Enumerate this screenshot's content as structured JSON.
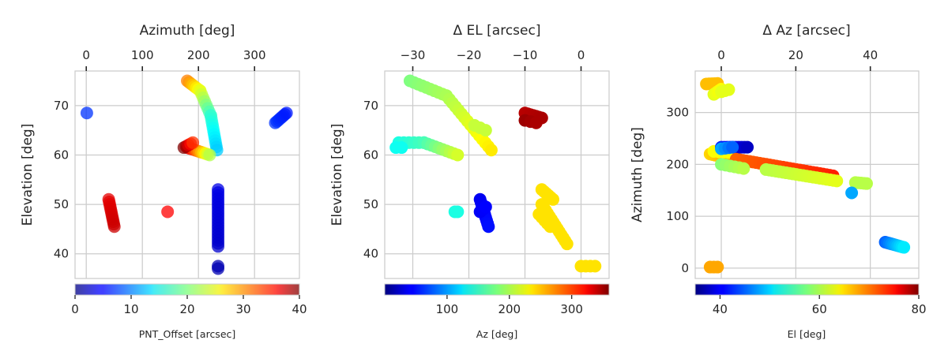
{
  "chart_data": [
    {
      "type": "scatter",
      "xlabel_top": "Azimuth [deg]",
      "ylabel": "Elevation [deg]",
      "xlim": [
        -20,
        380
      ],
      "ylim": [
        35,
        77
      ],
      "xticks": [
        0,
        100,
        200,
        300
      ],
      "yticks": [
        40,
        50,
        60,
        70
      ],
      "grid": true,
      "colorbar": {
        "label": "PNT_Offset [arcsec]",
        "range": [
          0,
          40
        ],
        "ticks": [
          0,
          10,
          20,
          30,
          40
        ],
        "colormap": "jet",
        "alpha": 0.75
      },
      "segments": [
        {
          "from": [
            180,
            75
          ],
          "to": [
            203,
            73
          ],
          "c_from": 30,
          "c_to": 24,
          "n": 8
        },
        {
          "from": [
            203,
            73
          ],
          "to": [
            222,
            68
          ],
          "c_from": 24,
          "c_to": 17,
          "n": 8
        },
        {
          "from": [
            222,
            68
          ],
          "to": [
            233,
            61
          ],
          "c_from": 17,
          "c_to": 13,
          "n": 12
        },
        {
          "from": [
            180,
            61.5
          ],
          "to": [
            220,
            60
          ],
          "c_from": 37,
          "c_to": 22,
          "n": 12
        },
        {
          "from": [
            174,
            61.5
          ],
          "to": [
            190,
            62.5
          ],
          "c_from": 40,
          "c_to": 33,
          "n": 5
        },
        {
          "from": [
            1,
            68.5
          ],
          "to": [
            2,
            68.5
          ],
          "c_from": 7,
          "c_to": 7,
          "n": 1
        },
        {
          "from": [
            337,
            66.5
          ],
          "to": [
            357,
            68.5
          ],
          "c_from": 7,
          "c_to": 6,
          "n": 8
        },
        {
          "from": [
            40,
            51
          ],
          "to": [
            50,
            45.5
          ],
          "c_from": 36,
          "c_to": 37,
          "n": 12
        },
        {
          "from": [
            145,
            48.5
          ],
          "to": [
            146,
            48.5
          ],
          "c_from": 35,
          "c_to": 35,
          "n": 1
        },
        {
          "from": [
            235,
            53
          ],
          "to": [
            235,
            41.5
          ],
          "c_from": 4,
          "c_to": 3,
          "n": 20
        },
        {
          "from": [
            235,
            37.5
          ],
          "to": [
            235,
            37
          ],
          "c_from": 2,
          "c_to": 2,
          "n": 2
        }
      ]
    },
    {
      "type": "scatter",
      "xlabel_top": "Δ EL [arcsec]",
      "ylabel": "Elevation [deg]",
      "xlim": [
        -35,
        5
      ],
      "ylim": [
        35,
        77
      ],
      "xticks": [
        -30,
        -20,
        -10,
        0
      ],
      "xtick_labels": [
        "−30",
        "−20",
        "−10",
        "0"
      ],
      "yticks": [
        40,
        50,
        60,
        70
      ],
      "grid": true,
      "colorbar": {
        "label": "Az [deg]",
        "range": [
          0,
          360
        ],
        "ticks": [
          100,
          200,
          300
        ],
        "colormap": "jet"
      },
      "segments": [
        {
          "from": [
            -30.5,
            75
          ],
          "to": [
            -24,
            72
          ],
          "c_from": 180,
          "c_to": 195,
          "n": 10
        },
        {
          "from": [
            -24,
            72
          ],
          "to": [
            -16,
            61
          ],
          "c_from": 195,
          "c_to": 232,
          "n": 16
        },
        {
          "from": [
            -19,
            66
          ],
          "to": [
            -17,
            65
          ],
          "c_from": 205,
          "c_to": 205,
          "n": 3
        },
        {
          "from": [
            -32.5,
            62.5
          ],
          "to": [
            -28,
            62.5
          ],
          "c_from": 145,
          "c_to": 160,
          "n": 6
        },
        {
          "from": [
            -28,
            62.5
          ],
          "to": [
            -22,
            60
          ],
          "c_from": 160,
          "c_to": 210,
          "n": 10
        },
        {
          "from": [
            -33,
            61.5
          ],
          "to": [
            -32,
            61.5
          ],
          "c_from": 140,
          "c_to": 140,
          "n": 2
        },
        {
          "from": [
            -10,
            68.5
          ],
          "to": [
            -7,
            67.5
          ],
          "c_from": 340,
          "c_to": 345,
          "n": 7
        },
        {
          "from": [
            -10,
            67
          ],
          "to": [
            -8,
            66.5
          ],
          "c_from": 350,
          "c_to": 345,
          "n": 3
        },
        {
          "from": [
            -18,
            51
          ],
          "to": [
            -16.5,
            45.5
          ],
          "c_from": 40,
          "c_to": 50,
          "n": 10
        },
        {
          "from": [
            -18,
            48.5
          ],
          "to": [
            -17,
            49.5
          ],
          "c_from": 42,
          "c_to": 45,
          "n": 3
        },
        {
          "from": [
            -22.5,
            48.5
          ],
          "to": [
            -22,
            48.5
          ],
          "c_from": 145,
          "c_to": 145,
          "n": 2
        },
        {
          "from": [
            -7,
            53
          ],
          "to": [
            -5,
            51
          ],
          "c_from": 235,
          "c_to": 235,
          "n": 6
        },
        {
          "from": [
            -7,
            50
          ],
          "to": [
            -2.5,
            42
          ],
          "c_from": 235,
          "c_to": 235,
          "n": 14
        },
        {
          "from": [
            -7.5,
            48
          ],
          "to": [
            -5.5,
            45.5
          ],
          "c_from": 235,
          "c_to": 235,
          "n": 5
        },
        {
          "from": [
            0,
            37.5
          ],
          "to": [
            2.5,
            37.5
          ],
          "c_from": 235,
          "c_to": 235,
          "n": 4
        }
      ]
    },
    {
      "type": "scatter",
      "xlabel_top": "Δ Az [arcsec]",
      "ylabel": "Azimuth [deg]",
      "xlim": [
        -7,
        53
      ],
      "ylim": [
        -20,
        380
      ],
      "xticks": [
        0,
        20,
        40
      ],
      "yticks": [
        0,
        100,
        200,
        300
      ],
      "grid": true,
      "colorbar": {
        "label": "El [deg]",
        "range": [
          35,
          80
        ],
        "ticks": [
          40,
          60,
          80
        ],
        "colormap": "jet"
      },
      "segments": [
        {
          "from": [
            -4,
            355
          ],
          "to": [
            -1,
            356
          ],
          "c_from": 66,
          "c_to": 66,
          "n": 5
        },
        {
          "from": [
            -2,
            335
          ],
          "to": [
            0,
            345
          ],
          "c_from": 62,
          "c_to": 63,
          "n": 5
        },
        {
          "from": [
            0,
            340
          ],
          "to": [
            2,
            344
          ],
          "c_from": 62,
          "c_to": 62,
          "n": 3
        },
        {
          "from": [
            -3,
            220
          ],
          "to": [
            3,
            210
          ],
          "c_from": 65,
          "c_to": 67,
          "n": 10
        },
        {
          "from": [
            -2,
            225
          ],
          "to": [
            2,
            223
          ],
          "c_from": 63,
          "c_to": 63,
          "n": 4
        },
        {
          "from": [
            0,
            233
          ],
          "to": [
            7,
            233
          ],
          "c_from": 42,
          "c_to": 38,
          "n": 10
        },
        {
          "from": [
            0,
            230
          ],
          "to": [
            3,
            233
          ],
          "c_from": 48,
          "c_to": 45,
          "n": 4
        },
        {
          "from": [
            4,
            210
          ],
          "to": [
            30,
            178
          ],
          "c_from": 70,
          "c_to": 73,
          "n": 30
        },
        {
          "from": [
            0,
            200
          ],
          "to": [
            6,
            192
          ],
          "c_from": 58,
          "c_to": 60,
          "n": 6
        },
        {
          "from": [
            12,
            190
          ],
          "to": [
            31,
            168
          ],
          "c_from": 60,
          "c_to": 62,
          "n": 22
        },
        {
          "from": [
            36,
            165
          ],
          "to": [
            39,
            163
          ],
          "c_from": 60,
          "c_to": 60,
          "n": 5
        },
        {
          "from": [
            35,
            145
          ],
          "to": [
            36,
            145
          ],
          "c_from": 48,
          "c_to": 48,
          "n": 1
        },
        {
          "from": [
            44,
            50
          ],
          "to": [
            49,
            40
          ],
          "c_from": 45,
          "c_to": 51,
          "n": 10
        },
        {
          "from": [
            -3,
            2
          ],
          "to": [
            -1,
            2
          ],
          "c_from": 67,
          "c_to": 67,
          "n": 3
        }
      ]
    }
  ]
}
